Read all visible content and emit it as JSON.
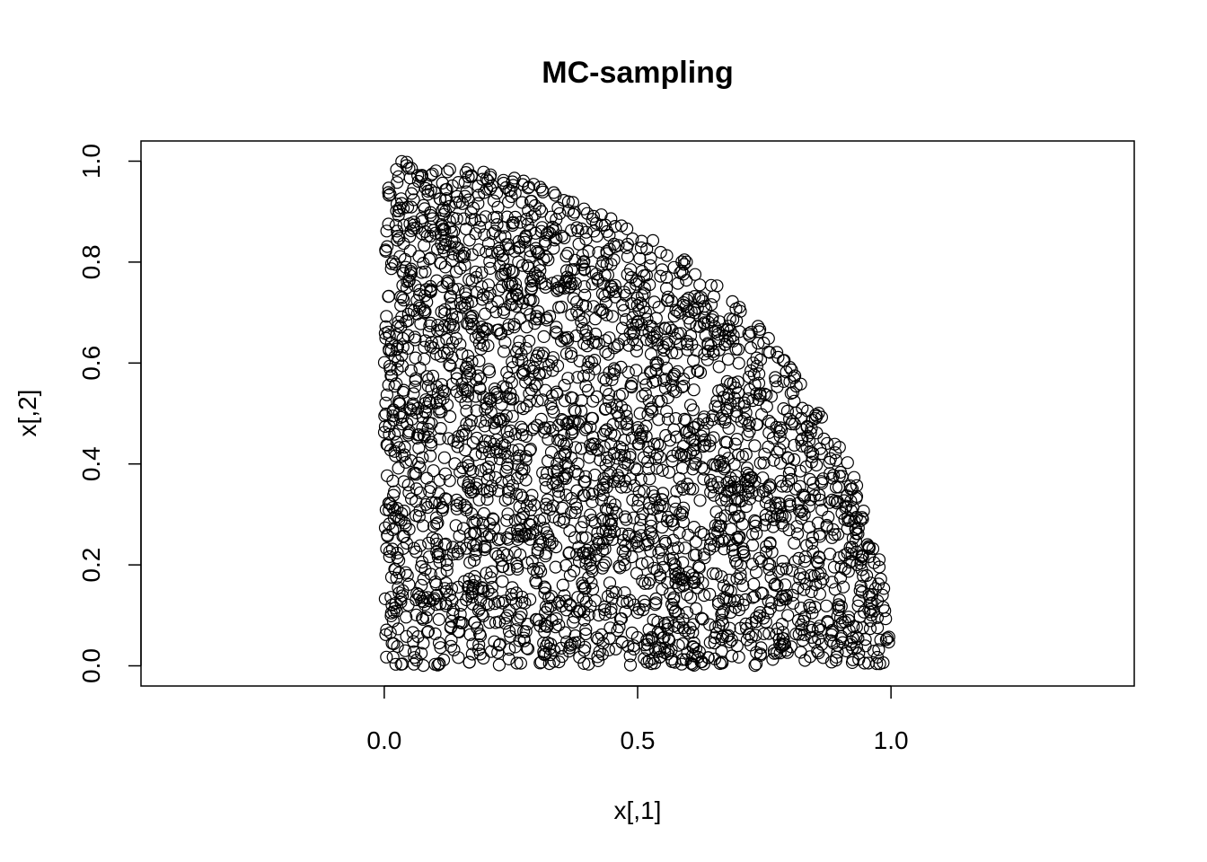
{
  "chart_data": {
    "type": "scatter",
    "title": "MC-sampling",
    "xlabel": "x[,1]",
    "ylabel": "x[,2]",
    "xlim": [
      -0.48,
      1.48
    ],
    "ylim": [
      -0.04,
      1.04
    ],
    "xticks": [
      "0.0",
      "0.5",
      "1.0"
    ],
    "yticks": [
      "0.0",
      "0.2",
      "0.4",
      "0.6",
      "0.8",
      "1.0"
    ],
    "marker": "open-circle",
    "marker_color": "#000000",
    "grid": false,
    "legend": "none",
    "region": "quarter unit disk: 0 <= x[,1] <= 1, 0 <= x[,2] <= sqrt(1 - x[,1]^2)",
    "n_points_approx": 3000
  }
}
